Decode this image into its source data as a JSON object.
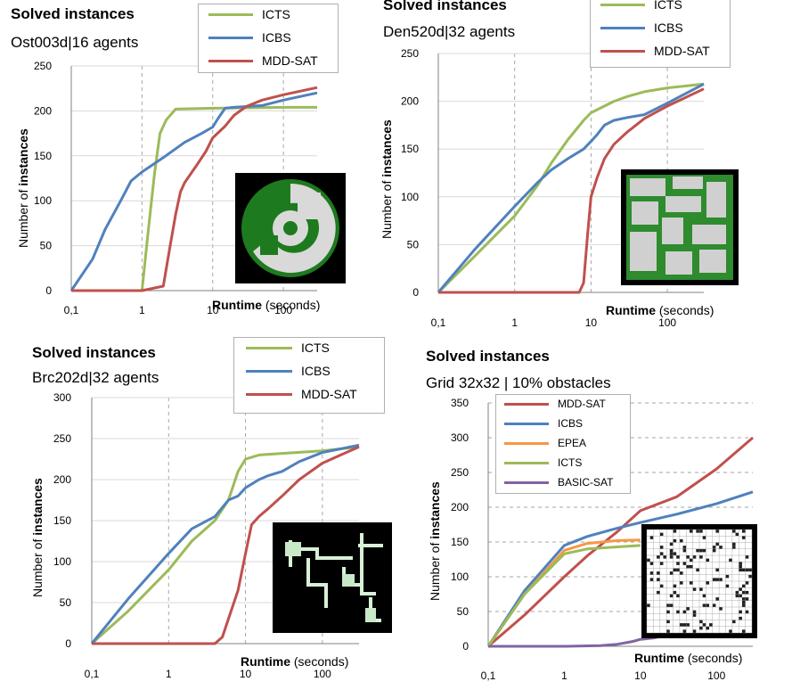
{
  "panels": [
    {
      "title": "Solved instances",
      "subtitle": "Ost003d|16 agents",
      "ylabel_plain": "Number of ",
      "ylabel_bold": "instances",
      "xlabel_bold": "Runtime",
      "xlabel_plain": " (seconds)"
    },
    {
      "title": "Solved instances",
      "subtitle": "Den520d|32 agents",
      "ylabel_plain": "Number of ",
      "ylabel_bold": "instances",
      "xlabel_bold": "Runtime",
      "xlabel_plain": " (seconds)"
    },
    {
      "title": "Solved instances",
      "subtitle": "Brc202d|32 agents",
      "ylabel_plain": "Number of ",
      "ylabel_bold": "instances",
      "xlabel_bold": "Runtime",
      "xlabel_plain": " (seconds)"
    },
    {
      "title": "Solved instances",
      "subtitle": "Grid 32x32 | 10% obstacles",
      "ylabel_plain": "Number of ",
      "ylabel_bold": "instances",
      "xlabel_bold": "Runtime",
      "xlabel_plain": " (seconds)"
    }
  ],
  "colors": {
    "ICTS": "#9bbb59",
    "ICBS": "#4f81bd",
    "MDD-SAT": "#c0504d",
    "EPEA": "#f79646",
    "BASIC-SAT": "#8064a2",
    "grid": "#a6a6a6"
  },
  "map_icons": [
    "ost003d-map-icon",
    "den520d-map-icon",
    "brc202d-map-icon",
    "grid32-map-icon"
  ],
  "chart_data": [
    {
      "type": "line",
      "title": "Solved instances",
      "subtitle": "Ost003d|16 agents",
      "xlabel": "Runtime (seconds)",
      "ylabel": "Number of instances",
      "x_scale": "log",
      "xlim": [
        0.1,
        300
      ],
      "ylim": [
        0,
        250
      ],
      "x_ticks": [
        "0,1",
        "1",
        "10",
        "100"
      ],
      "y_ticks": [
        "0",
        "50",
        "100",
        "150",
        "200",
        "250"
      ],
      "grid": "vertical dashed",
      "legend": "top-right",
      "series": [
        {
          "name": "ICTS",
          "x": [
            0.1,
            1,
            1.2,
            1.5,
            1.8,
            2.2,
            3,
            10,
            100,
            300
          ],
          "y": [
            0,
            0,
            60,
            130,
            175,
            190,
            202,
            203,
            204,
            204
          ]
        },
        {
          "name": "ICBS",
          "x": [
            0.1,
            0.2,
            0.3,
            0.5,
            0.7,
            1,
            2,
            4,
            7,
            10,
            12,
            15,
            20,
            50,
            100,
            300
          ],
          "y": [
            0,
            35,
            68,
            100,
            122,
            132,
            148,
            165,
            175,
            182,
            192,
            203,
            204,
            206,
            212,
            220
          ]
        },
        {
          "name": "MDD-SAT",
          "x": [
            0.1,
            1,
            2,
            2.5,
            3,
            3.5,
            4,
            6,
            8,
            10,
            15,
            20,
            30,
            50,
            100,
            300
          ],
          "y": [
            0,
            0,
            5,
            50,
            85,
            110,
            120,
            140,
            155,
            170,
            183,
            195,
            205,
            212,
            218,
            226
          ]
        }
      ]
    },
    {
      "type": "line",
      "title": "Solved instances",
      "subtitle": "Den520d|32 agents",
      "xlabel": "Runtime (seconds)",
      "ylabel": "Number of instances",
      "x_scale": "log",
      "xlim": [
        0.1,
        300
      ],
      "ylim": [
        0,
        250
      ],
      "x_ticks": [
        "0,1",
        "1",
        "10",
        "100"
      ],
      "y_ticks": [
        "0",
        "50",
        "100",
        "150",
        "200",
        "250"
      ],
      "grid": "vertical dashed",
      "legend": "top-right",
      "series": [
        {
          "name": "ICTS",
          "x": [
            0.1,
            0.3,
            1,
            2,
            3,
            5,
            8,
            10,
            20,
            30,
            50,
            100,
            300
          ],
          "y": [
            0,
            38,
            80,
            112,
            135,
            160,
            180,
            188,
            200,
            205,
            210,
            214,
            218
          ]
        },
        {
          "name": "ICBS",
          "x": [
            0.1,
            0.3,
            1,
            2,
            3,
            5,
            8,
            10,
            12,
            15,
            20,
            30,
            50,
            100,
            300
          ],
          "y": [
            0,
            45,
            90,
            115,
            128,
            140,
            150,
            158,
            165,
            175,
            180,
            183,
            186,
            198,
            218
          ]
        },
        {
          "name": "MDD-SAT",
          "x": [
            0.1,
            7,
            8,
            9,
            10,
            12,
            15,
            20,
            30,
            50,
            100,
            300
          ],
          "y": [
            0,
            0,
            10,
            60,
            100,
            120,
            140,
            155,
            168,
            182,
            195,
            213
          ]
        }
      ]
    },
    {
      "type": "line",
      "title": "Solved instances",
      "subtitle": "Brc202d|32 agents",
      "xlabel": "Runtime (seconds)",
      "ylabel": "Number of instances",
      "x_scale": "log",
      "xlim": [
        0.1,
        300
      ],
      "ylim": [
        0,
        300
      ],
      "x_ticks": [
        "0,1",
        "1",
        "10",
        "100"
      ],
      "y_ticks": [
        "0",
        "50",
        "100",
        "150",
        "200",
        "250",
        "300"
      ],
      "grid": "vertical dashed",
      "legend": "top-right",
      "series": [
        {
          "name": "ICTS",
          "x": [
            0.1,
            0.3,
            1,
            2,
            4,
            6,
            8,
            10,
            15,
            30,
            100,
            300
          ],
          "y": [
            0,
            40,
            90,
            125,
            150,
            175,
            210,
            225,
            230,
            232,
            235,
            240
          ]
        },
        {
          "name": "ICBS",
          "x": [
            0.1,
            0.3,
            1,
            2,
            4,
            6,
            8,
            10,
            15,
            20,
            30,
            50,
            100,
            300
          ],
          "y": [
            0,
            55,
            110,
            140,
            155,
            175,
            180,
            190,
            200,
            205,
            210,
            222,
            233,
            242
          ]
        },
        {
          "name": "MDD-SAT",
          "x": [
            0.1,
            4,
            5,
            6,
            8,
            10,
            12,
            15,
            20,
            30,
            50,
            100,
            300
          ],
          "y": [
            0,
            0,
            8,
            30,
            65,
            110,
            145,
            155,
            165,
            180,
            200,
            220,
            240
          ]
        }
      ]
    },
    {
      "type": "line",
      "title": "Solved instances",
      "subtitle": "Grid 32x32 | 10% obstacles",
      "xlabel": "Runtime (seconds)",
      "ylabel": "Number of instances",
      "x_scale": "log",
      "xlim": [
        0.1,
        300
      ],
      "ylim": [
        0,
        350
      ],
      "x_ticks": [
        "0,1",
        "1",
        "10",
        "100"
      ],
      "y_ticks": [
        "0",
        "50",
        "100",
        "150",
        "200",
        "250",
        "300",
        "350"
      ],
      "grid": "horizontal dashed",
      "legend": "top-left",
      "series": [
        {
          "name": "MDD-SAT",
          "x": [
            0.1,
            0.3,
            1,
            2,
            5,
            10,
            30,
            100,
            300
          ],
          "y": [
            0,
            45,
            100,
            130,
            165,
            195,
            215,
            255,
            300
          ]
        },
        {
          "name": "ICBS",
          "x": [
            0.1,
            0.3,
            1,
            2,
            5,
            10,
            30,
            100,
            300
          ],
          "y": [
            0,
            80,
            145,
            158,
            170,
            178,
            190,
            205,
            222
          ]
        },
        {
          "name": "EPEA",
          "x": [
            0.1,
            0.3,
            1,
            2,
            5,
            10
          ],
          "y": [
            0,
            75,
            138,
            148,
            152,
            153
          ]
        },
        {
          "name": "ICTS",
          "x": [
            0.1,
            0.3,
            1,
            2,
            5,
            10
          ],
          "y": [
            0,
            75,
            133,
            140,
            143,
            145
          ]
        },
        {
          "name": "BASIC-SAT",
          "x": [
            0.1,
            1,
            3,
            5,
            8,
            10,
            15,
            20
          ],
          "y": [
            0,
            0,
            1,
            3,
            7,
            10,
            12,
            15
          ]
        }
      ]
    }
  ]
}
